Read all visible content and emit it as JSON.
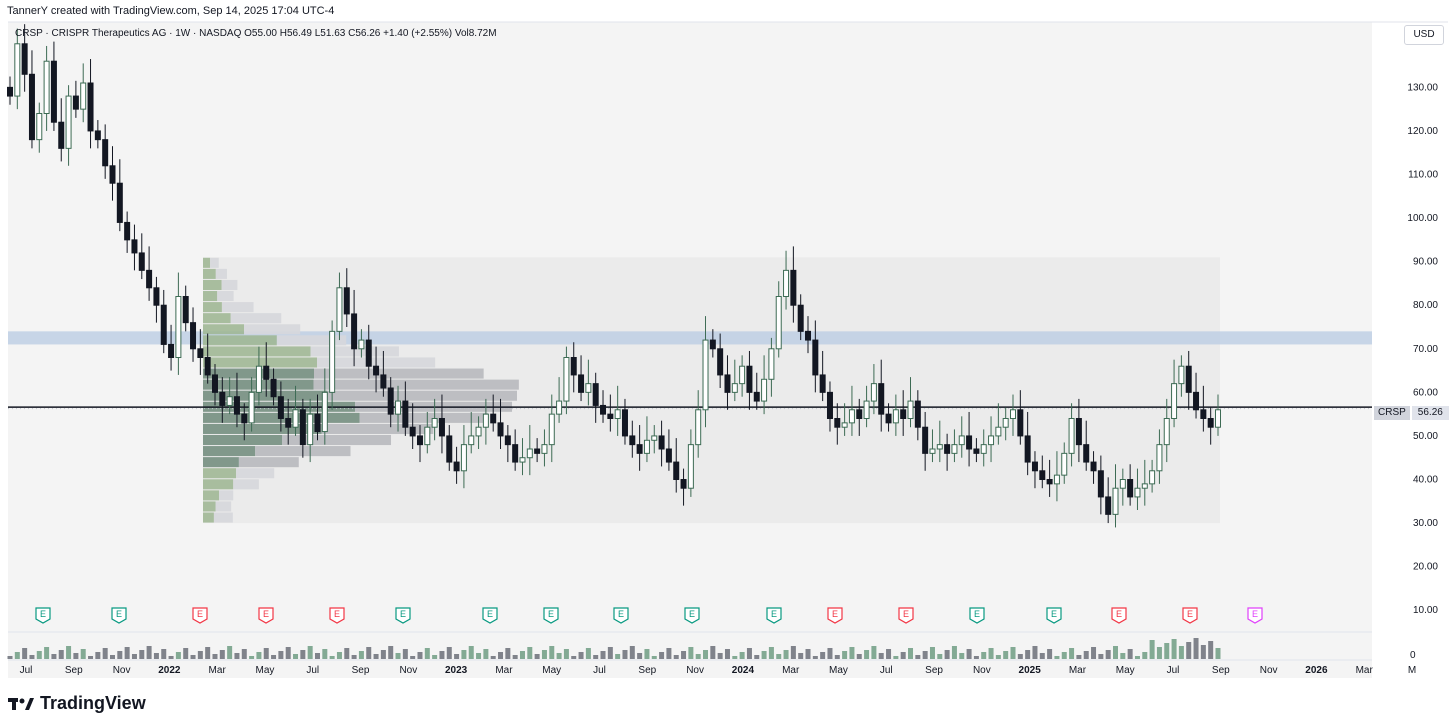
{
  "header": {
    "attribution": "TannerY created with TradingView.com, Sep 14, 2025 17:04 UTC-4"
  },
  "legend": {
    "text": "CRSP · CRISPR Therapeutics AG · 1W · NASDAQ  O55.00  H56.49  L51.63  C56.26  +1.40 (+2.55%)  Vol8.72M"
  },
  "currency": "USD",
  "price_tag": {
    "symbol": "CRSP",
    "value": "56.26"
  },
  "brand": {
    "name": "TradingView"
  },
  "colors": {
    "up": "#3d6b54",
    "down": "#131722",
    "zone": "#b8cbe3",
    "earnings_green": "#089981",
    "earnings_red": "#f23645",
    "earnings_future": "#e040fb"
  },
  "chart_data": {
    "type": "candlestick",
    "title": "CRSP · CRISPR Therapeutics AG · 1W · NASDAQ",
    "ylim": [
      5,
      145
    ],
    "y_ticks": [
      "130.00",
      "120.00",
      "110.00",
      "100.00",
      "90.00",
      "80.00",
      "70.00",
      "60.00",
      "50.00",
      "40.00",
      "30.00",
      "20.00",
      "10.00"
    ],
    "y_tick_values": [
      130,
      120,
      110,
      100,
      90,
      80,
      70,
      60,
      50,
      40,
      30,
      20,
      10
    ],
    "x_ticks": [
      {
        "label": "Jul",
        "bold": false
      },
      {
        "label": "Sep",
        "bold": false
      },
      {
        "label": "Nov",
        "bold": false
      },
      {
        "label": "2022",
        "bold": true
      },
      {
        "label": "Mar",
        "bold": false
      },
      {
        "label": "May",
        "bold": false
      },
      {
        "label": "Jul",
        "bold": false
      },
      {
        "label": "Sep",
        "bold": false
      },
      {
        "label": "Nov",
        "bold": false
      },
      {
        "label": "2023",
        "bold": true
      },
      {
        "label": "Mar",
        "bold": false
      },
      {
        "label": "May",
        "bold": false
      },
      {
        "label": "Jul",
        "bold": false
      },
      {
        "label": "Sep",
        "bold": false
      },
      {
        "label": "Nov",
        "bold": false
      },
      {
        "label": "2024",
        "bold": true
      },
      {
        "label": "Mar",
        "bold": false
      },
      {
        "label": "May",
        "bold": false
      },
      {
        "label": "Jul",
        "bold": false
      },
      {
        "label": "Sep",
        "bold": false
      },
      {
        "label": "Nov",
        "bold": false
      },
      {
        "label": "2025",
        "bold": true
      },
      {
        "label": "Mar",
        "bold": false
      },
      {
        "label": "May",
        "bold": false
      },
      {
        "label": "Jul",
        "bold": false
      },
      {
        "label": "Sep",
        "bold": false
      },
      {
        "label": "Nov",
        "bold": false
      },
      {
        "label": "2026",
        "bold": true
      },
      {
        "label": "Mar",
        "bold": false
      },
      {
        "label": "M",
        "bold": false
      }
    ],
    "horizontal_line": 56.6,
    "resistance_zone": [
      71,
      74
    ],
    "volume_profile_range": [
      30,
      91
    ],
    "last_price": 56.26,
    "volume_axis_label": "0",
    "closes": [
      128,
      140,
      133,
      118,
      124,
      136,
      122,
      116,
      128,
      125,
      131,
      120,
      118,
      112,
      108,
      99,
      95,
      92,
      88,
      84,
      80,
      71,
      68,
      82,
      76,
      70,
      68,
      64,
      60,
      57,
      59,
      55,
      53,
      60,
      66,
      63,
      59,
      54,
      52,
      56,
      48,
      55,
      51,
      60,
      74,
      84,
      78,
      70,
      72,
      66,
      64,
      61,
      55,
      58,
      52,
      50,
      48,
      52,
      54,
      50,
      44,
      42,
      48,
      50,
      52,
      55,
      53,
      50,
      48,
      44,
      45,
      47,
      46,
      48,
      55,
      58,
      68,
      64,
      60,
      62,
      57,
      55,
      54,
      56,
      50,
      48,
      46,
      49,
      50,
      47,
      44,
      40,
      38,
      48,
      56,
      72,
      70,
      64,
      60,
      62,
      66,
      60,
      58,
      63,
      70,
      82,
      88,
      80,
      74,
      72,
      64,
      60,
      54,
      52,
      53,
      56,
      54,
      58,
      62,
      55,
      53,
      56,
      54,
      58,
      52,
      46,
      47,
      48,
      46,
      48,
      50,
      47,
      46,
      48,
      50,
      52,
      54,
      56,
      50,
      44,
      42,
      40,
      39,
      41,
      46,
      54,
      48,
      44,
      42,
      36,
      32,
      38,
      40,
      36,
      38,
      39,
      42,
      48,
      54,
      62,
      66,
      60,
      56,
      54,
      52,
      56
    ],
    "earnings": [
      {
        "type": "beat",
        "label": "E"
      },
      {
        "type": "beat",
        "label": "E"
      },
      {
        "type": "miss",
        "label": "E"
      },
      {
        "type": "miss",
        "label": "E"
      },
      {
        "type": "miss",
        "label": "E"
      },
      {
        "type": "beat",
        "label": "E"
      },
      {
        "type": "beat",
        "label": "E"
      },
      {
        "type": "beat",
        "label": "E"
      },
      {
        "type": "beat",
        "label": "E"
      },
      {
        "type": "beat",
        "label": "E"
      },
      {
        "type": "beat",
        "label": "E"
      },
      {
        "type": "miss",
        "label": "E"
      },
      {
        "type": "miss",
        "label": "E"
      },
      {
        "type": "beat",
        "label": "E"
      },
      {
        "type": "beat",
        "label": "E"
      },
      {
        "type": "miss",
        "label": "E"
      },
      {
        "type": "miss",
        "label": "E"
      },
      {
        "type": "future",
        "label": "E"
      }
    ]
  }
}
